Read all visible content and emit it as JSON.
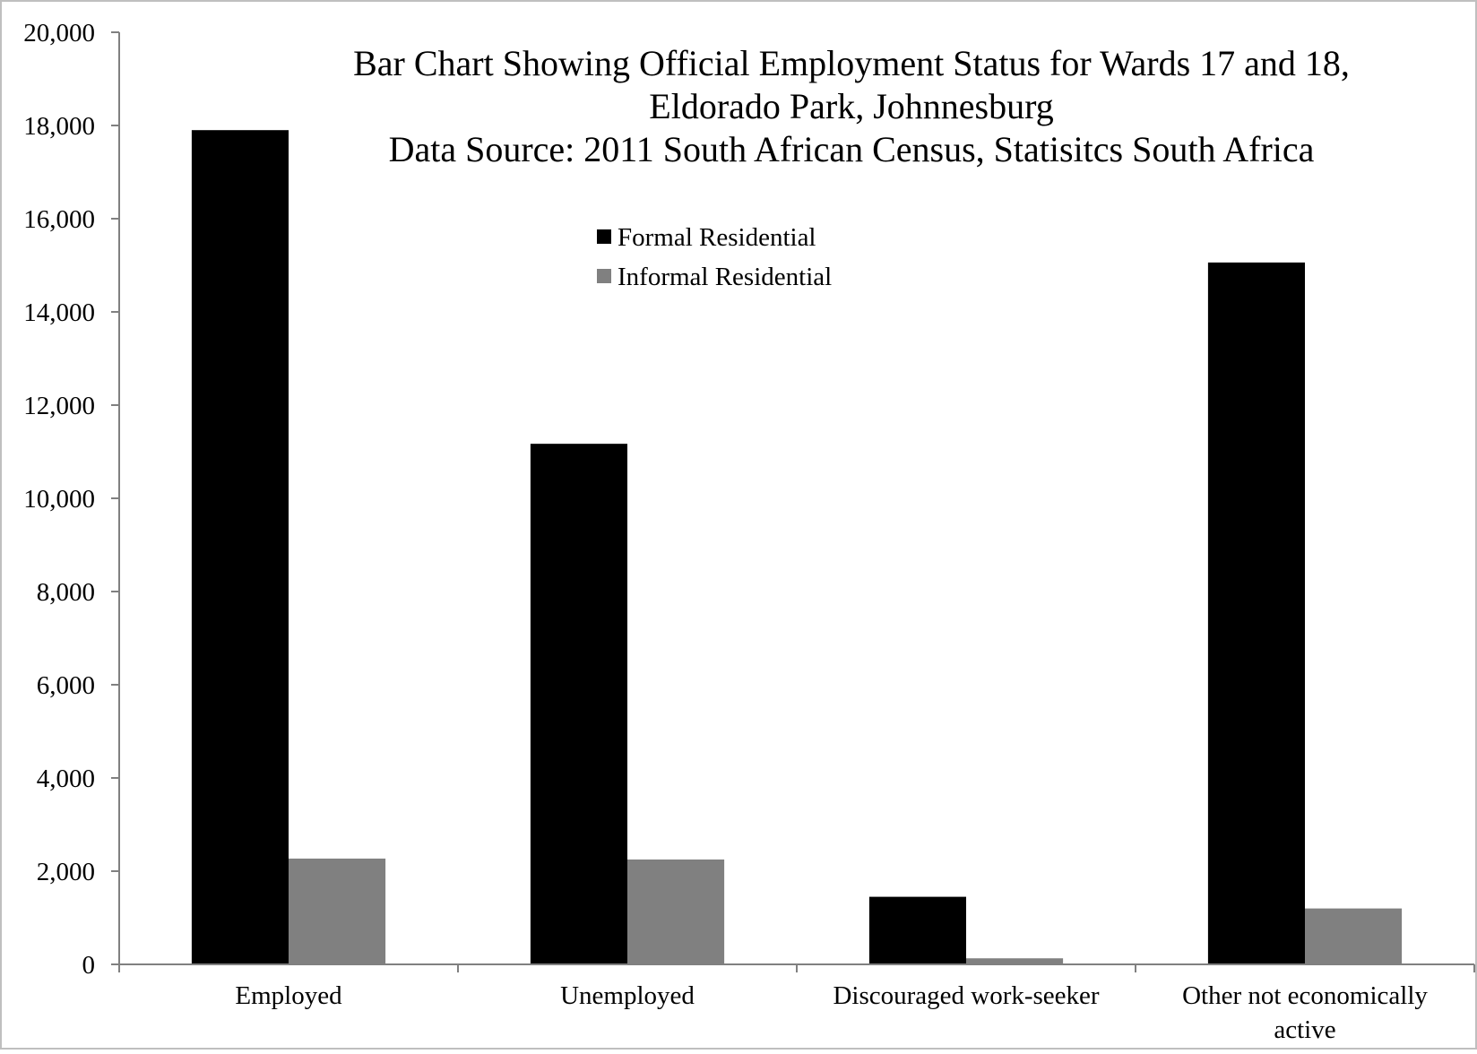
{
  "chart_data": {
    "type": "bar",
    "title_lines": [
      "Bar Chart Showing Official Employment Status for Wards 17 and 18,",
      "Eldorado Park, Johnnesburg",
      "Data Source: 2011 South African Census, Statisitcs South Africa"
    ],
    "categories": [
      [
        "Employed"
      ],
      [
        "Unemployed"
      ],
      [
        "Discouraged work-seeker"
      ],
      [
        "Other not economically",
        "active"
      ]
    ],
    "series": [
      {
        "name": "Formal Residential",
        "color": "#000000",
        "values": [
          17900,
          11170,
          1450,
          15060
        ]
      },
      {
        "name": "Informal Residential",
        "color": "#808080",
        "values": [
          2270,
          2250,
          130,
          1200
        ]
      }
    ],
    "ylim": [
      0,
      20000
    ],
    "y_ticks": [
      0,
      2000,
      4000,
      6000,
      8000,
      10000,
      12000,
      14000,
      16000,
      18000,
      20000
    ],
    "y_tick_labels": [
      "0",
      "2,000",
      "4,000",
      "6,000",
      "8,000",
      "10,000",
      "12,000",
      "14,000",
      "16,000",
      "18,000",
      "20,000"
    ],
    "xlabel": "",
    "ylabel": "",
    "grid": false,
    "legend_position": "top-center"
  }
}
